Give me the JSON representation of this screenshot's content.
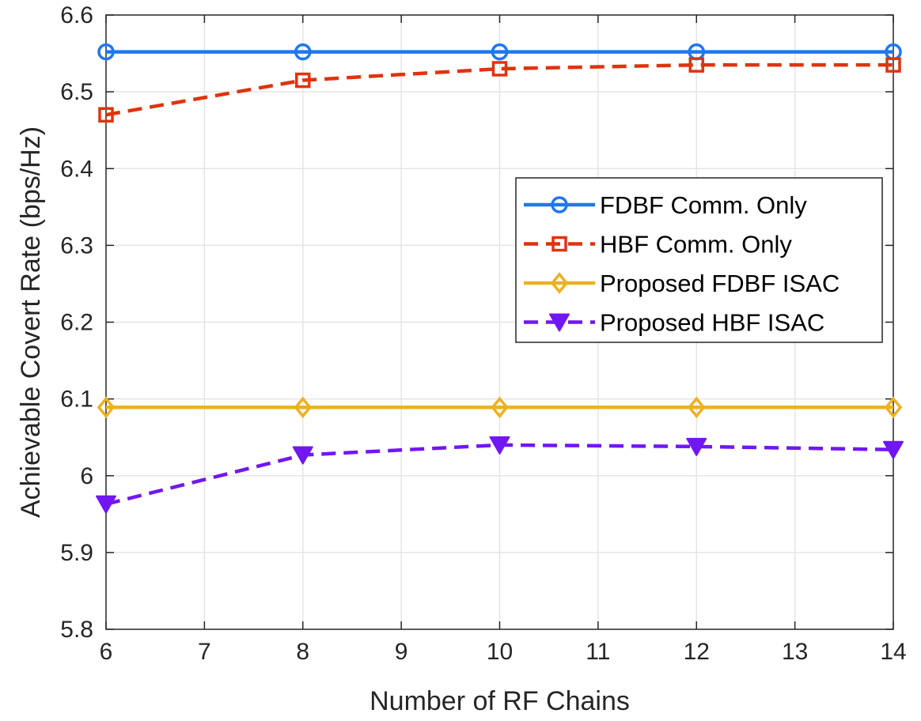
{
  "chart_data": {
    "type": "line",
    "title": "",
    "xlabel": "Number of RF Chains",
    "ylabel": "Achievable Covert Rate (bps/Hz)",
    "xlim": [
      6,
      14
    ],
    "ylim": [
      5.8,
      6.6
    ],
    "xticks": [
      6,
      7,
      8,
      9,
      10,
      11,
      12,
      13,
      14
    ],
    "yticks": [
      5.8,
      5.9,
      6,
      6.1,
      6.2,
      6.3,
      6.4,
      6.5,
      6.6
    ],
    "xtick_labels": [
      "6",
      "7",
      "8",
      "9",
      "10",
      "11",
      "12",
      "13",
      "14"
    ],
    "ytick_labels": [
      "5.8",
      "5.9",
      "6",
      "6.1",
      "6.2",
      "6.3",
      "6.4",
      "6.5",
      "6.6"
    ],
    "grid": true,
    "legend_position": "right",
    "x": [
      6,
      8,
      10,
      12,
      14
    ],
    "series": [
      {
        "name": "FDBF Comm. Only",
        "values": [
          6.552,
          6.552,
          6.552,
          6.552,
          6.552
        ],
        "color": "#1f77f0",
        "dash": "solid",
        "marker": "circle"
      },
      {
        "name": "HBF Comm. Only",
        "values": [
          6.47,
          6.515,
          6.53,
          6.535,
          6.535
        ],
        "color": "#e0330e",
        "dash": "dashed",
        "marker": "square"
      },
      {
        "name": "Proposed FDBF ISAC",
        "values": [
          6.089,
          6.089,
          6.089,
          6.089,
          6.089
        ],
        "color": "#edb120",
        "dash": "solid",
        "marker": "diamond"
      },
      {
        "name": "Proposed HBF ISAC",
        "values": [
          5.963,
          6.027,
          6.04,
          6.038,
          6.034
        ],
        "color": "#7117f2",
        "dash": "dashed",
        "marker": "triangle-down"
      }
    ]
  }
}
